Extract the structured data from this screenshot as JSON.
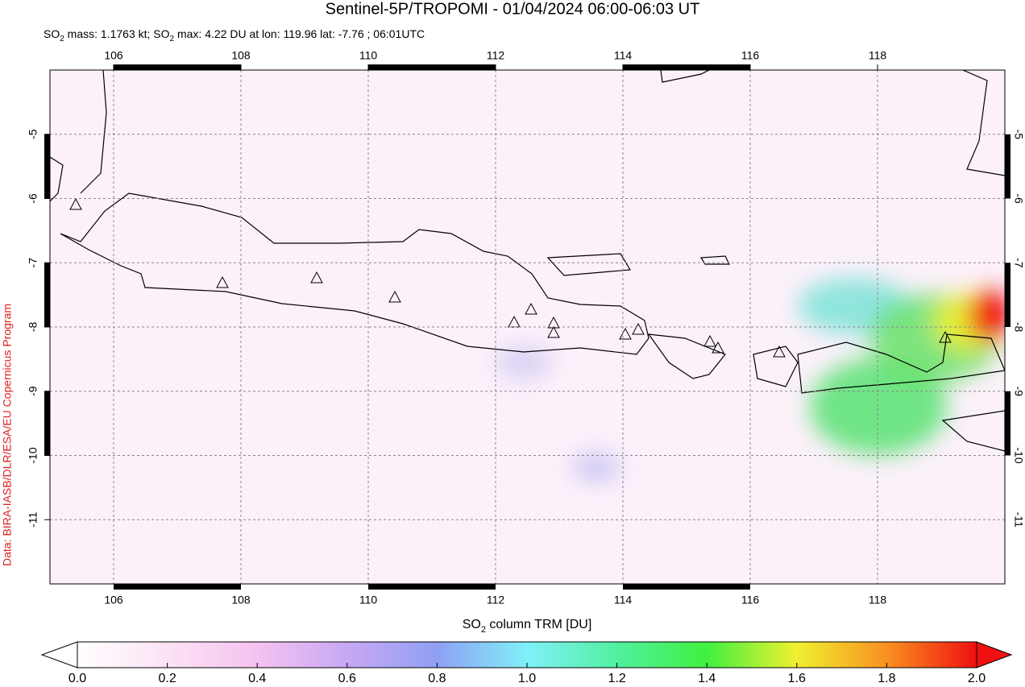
{
  "header": {
    "title": "Sentinel-5P/TROPOMI - 01/04/2024 06:00-06:03 UT",
    "subtitle": [
      "SO",
      "2",
      " mass: 1.1763 kt; SO",
      "2",
      " max: 4.22 DU at lon: 119.96 lat: -7.76 ; 06:01UTC"
    ]
  },
  "map": {
    "xlim": [
      105,
      120
    ],
    "ylim": [
      -12,
      -4
    ],
    "xticks": [
      106,
      108,
      110,
      112,
      114,
      116,
      118
    ],
    "yticks": [
      -5,
      -6,
      -7,
      -8,
      -9,
      -10,
      -11
    ],
    "grid": true
  },
  "credit": "Data: BIRA-IASB/DLR/ESA/EU Copernicus Program",
  "colorbar": {
    "label": [
      "SO",
      "2",
      " column TRM [DU]"
    ],
    "clim": [
      0,
      2
    ],
    "ticks": [
      {
        "value": 0,
        "label": "0.0"
      },
      {
        "value": 0.2,
        "label": "0.2"
      },
      {
        "value": 0.4,
        "label": "0.4"
      },
      {
        "value": 0.6,
        "label": "0.6"
      },
      {
        "value": 0.8,
        "label": "0.8"
      },
      {
        "value": 1,
        "label": "1.0"
      },
      {
        "value": 1.2,
        "label": "1.2"
      },
      {
        "value": 1.4,
        "label": "1.4"
      },
      {
        "value": 1.6,
        "label": "1.6"
      },
      {
        "value": 1.8,
        "label": "1.8"
      },
      {
        "value": 2,
        "label": "2.0"
      }
    ]
  }
}
